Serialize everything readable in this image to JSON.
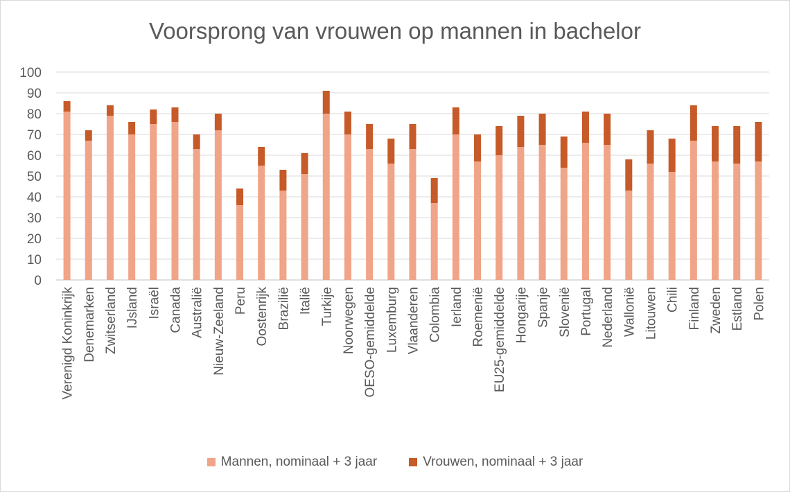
{
  "chart_data": {
    "type": "bar",
    "stacked": true,
    "title": "Voorsprong van vrouwen op mannen in bachelor",
    "xlabel": "",
    "ylabel": "",
    "ylim": [
      0,
      100
    ],
    "yticks": [
      0,
      10,
      20,
      30,
      40,
      50,
      60,
      70,
      80,
      90,
      100
    ],
    "grid": true,
    "legend_position": "bottom",
    "categories": [
      "Verenigd Koninkrijk",
      "Denemarken",
      "Zwitserland",
      "IJsland",
      "Israël",
      "Canada",
      "Australië",
      "Nieuw-Zeeland",
      "Peru",
      "Oostenrijk",
      "Brazilië",
      "Italië",
      "Turkije",
      "Noorwegen",
      "OESO-gemiddelde",
      "Luxemburg",
      "Vlaanderen",
      "Colombia",
      "Ierland",
      "Roemenië",
      "EU25-gemiddelde",
      "Hongarije",
      "Spanje",
      "Slovenië",
      "Portugal",
      "Nederland",
      "Wallonië",
      "Litouwen",
      "Chili",
      "Finland",
      "Zweden",
      "Estland",
      "Polen"
    ],
    "series": [
      {
        "name": "Mannen, nominaal + 3 jaar",
        "color": "#f0a488",
        "values": [
          81,
          67,
          79,
          70,
          75,
          76,
          63,
          72,
          36,
          55,
          43,
          51,
          80,
          70,
          63,
          56,
          63,
          37,
          70,
          57,
          60,
          64,
          65,
          54,
          66,
          65,
          43,
          56,
          52,
          67,
          57,
          56,
          57
        ]
      },
      {
        "name": "Vrouwen, nominaal + 3 jaar",
        "color": "#c65a28",
        "values": [
          5,
          5,
          5,
          6,
          7,
          7,
          7,
          8,
          8,
          9,
          10,
          10,
          11,
          11,
          12,
          12,
          12,
          12,
          13,
          13,
          14,
          15,
          15,
          15,
          15,
          15,
          15,
          16,
          16,
          17,
          17,
          18,
          19
        ]
      }
    ]
  }
}
